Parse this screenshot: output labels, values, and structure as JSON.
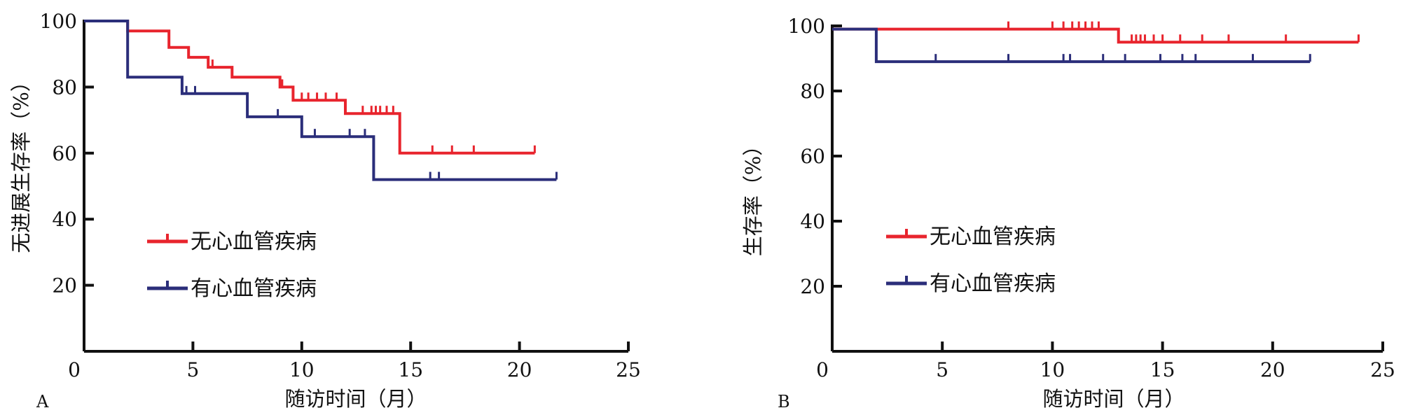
{
  "chart_data": [
    {
      "panel": "A",
      "type": "line",
      "subtype": "kaplan-meier",
      "xlabel": "随访时间（月）",
      "ylabel": "无进展生存率（%）",
      "xlim": [
        0,
        25
      ],
      "ylim": [
        0,
        100
      ],
      "x_ticks": [
        0,
        5,
        10,
        15,
        20,
        25
      ],
      "y_ticks": [
        20,
        40,
        60,
        80,
        100
      ],
      "legend_position": "lower-left",
      "series": [
        {
          "name": "无心血管疾病",
          "color": "#e8242d",
          "steps": [
            [
              0,
              100
            ],
            [
              2.0,
              100
            ],
            [
              2.0,
              97
            ],
            [
              3.9,
              97
            ],
            [
              3.9,
              92
            ],
            [
              4.8,
              92
            ],
            [
              4.8,
              89
            ],
            [
              5.7,
              89
            ],
            [
              5.7,
              86
            ],
            [
              6.8,
              86
            ],
            [
              6.8,
              83
            ],
            [
              9.0,
              83
            ],
            [
              9.0,
              80
            ],
            [
              9.6,
              80
            ],
            [
              9.6,
              76
            ],
            [
              12.0,
              76
            ],
            [
              12.0,
              72
            ],
            [
              14.5,
              72
            ],
            [
              14.5,
              60
            ],
            [
              20.7,
              60
            ]
          ],
          "censor_x": [
            4.8,
            5.9,
            9.1,
            10.0,
            10.3,
            10.7,
            11.1,
            11.6,
            12.8,
            13.2,
            13.4,
            13.6,
            13.9,
            14.2,
            16.0,
            16.9,
            17.9,
            20.7
          ]
        },
        {
          "name": "有心血管疾病",
          "color": "#2b2e7a",
          "steps": [
            [
              0,
              100
            ],
            [
              2.0,
              100
            ],
            [
              2.0,
              83
            ],
            [
              4.5,
              83
            ],
            [
              4.5,
              78
            ],
            [
              7.5,
              78
            ],
            [
              7.5,
              71
            ],
            [
              10.0,
              71
            ],
            [
              10.0,
              65
            ],
            [
              13.3,
              65
            ],
            [
              13.3,
              52
            ],
            [
              21.7,
              52
            ]
          ],
          "censor_x": [
            4.7,
            5.1,
            8.9,
            10.6,
            12.2,
            12.9,
            15.9,
            16.3,
            21.7
          ]
        }
      ]
    },
    {
      "panel": "B",
      "type": "line",
      "subtype": "kaplan-meier",
      "xlabel": "随访时间（月）",
      "ylabel": "生存率（%）",
      "xlim": [
        0,
        25
      ],
      "ylim": [
        0,
        100
      ],
      "x_ticks": [
        0,
        5,
        10,
        15,
        20,
        25
      ],
      "y_ticks": [
        20,
        40,
        60,
        80,
        100
      ],
      "legend_position": "lower-left",
      "series": [
        {
          "name": "无心血管疾病",
          "color": "#e8242d",
          "steps": [
            [
              0,
              99
            ],
            [
              13.0,
              99
            ],
            [
              13.0,
              95
            ],
            [
              23.9,
              95
            ]
          ],
          "censor_x": [
            8.0,
            10.0,
            10.5,
            10.9,
            11.2,
            11.5,
            11.8,
            12.1,
            13.6,
            13.8,
            14.0,
            14.2,
            14.6,
            15.0,
            15.8,
            16.8,
            18.0,
            20.6,
            23.9
          ]
        },
        {
          "name": "有心血管疾病",
          "color": "#2b2e7a",
          "steps": [
            [
              0,
              99
            ],
            [
              2.0,
              99
            ],
            [
              2.0,
              89
            ],
            [
              21.7,
              89
            ]
          ],
          "censor_x": [
            4.7,
            8.0,
            10.5,
            10.8,
            12.3,
            13.3,
            14.9,
            15.9,
            16.5,
            19.1,
            21.7
          ]
        }
      ]
    }
  ]
}
